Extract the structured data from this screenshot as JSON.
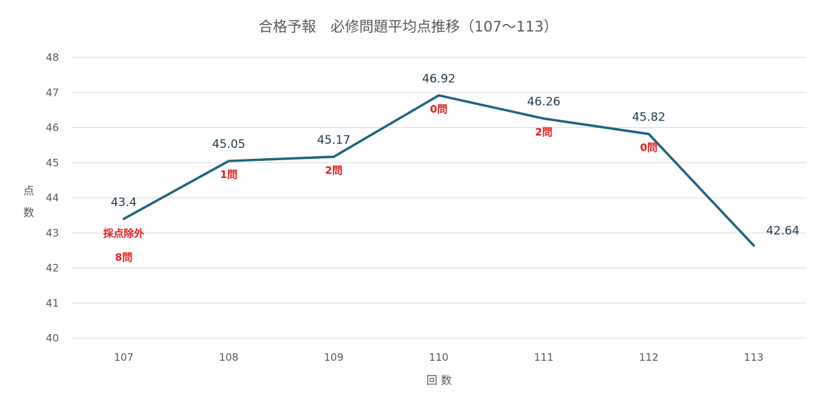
{
  "chart_data": {
    "type": "line",
    "title": "合格予報　必修問題平均点推移（107〜113）",
    "xlabel": "回 数",
    "ylabel": "点 数",
    "categories": [
      "107",
      "108",
      "109",
      "110",
      "111",
      "112",
      "113"
    ],
    "series": [
      {
        "values": [
          43.4,
          45.05,
          45.17,
          46.92,
          46.26,
          45.82,
          42.64
        ]
      }
    ],
    "data_labels": [
      "43.4",
      "45.05",
      "45.17",
      "46.92",
      "46.26",
      "45.82",
      "42.64"
    ],
    "ylim": [
      40,
      48
    ],
    "yticks": [
      "40",
      "41",
      "42",
      "43",
      "44",
      "45",
      "46",
      "47",
      "48"
    ],
    "grid": true,
    "legend": "none",
    "line_color": "#1f6480",
    "annotations": [
      {
        "category": "107",
        "lines": [
          "採点除外",
          "8問"
        ]
      },
      {
        "category": "108",
        "lines": [
          "1問"
        ]
      },
      {
        "category": "109",
        "lines": [
          "2問"
        ]
      },
      {
        "category": "110",
        "lines": [
          "0問"
        ]
      },
      {
        "category": "111",
        "lines": [
          "2問"
        ]
      },
      {
        "category": "112",
        "lines": [
          "0問"
        ]
      }
    ],
    "annotation_color": "#e02020"
  }
}
